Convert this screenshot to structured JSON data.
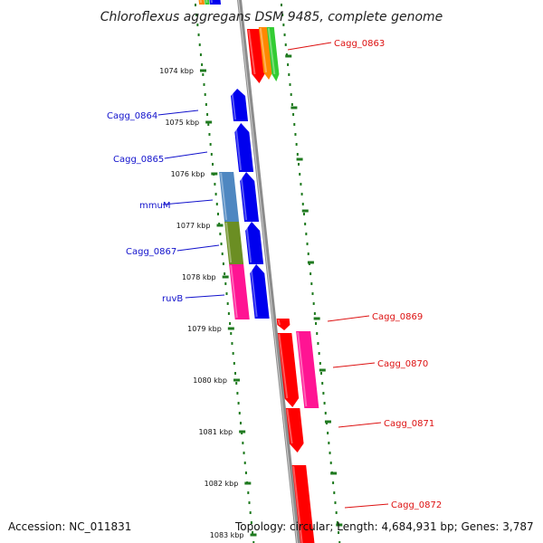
{
  "title": "Chloroflexus aggregans DSM 9485, complete genome",
  "accession": "Accession: NC_011831",
  "topology": "Topology: circular; Length: 4,684,931 bp; Genes: 3,787",
  "colors": {
    "backbone": "#8c8c8c",
    "ruler": "#1f7a1f",
    "forward_label": "#dd1111",
    "reverse_label": "#1111cc"
  },
  "ruler_ticks": [
    "1074 kbp",
    "1075 kbp",
    "1076 kbp",
    "1077 kbp",
    "1078 kbp",
    "1079 kbp",
    "1080 kbp",
    "1081 kbp",
    "1082 kbp",
    "1083 kbp"
  ],
  "gene_labels": {
    "reverse_strand": [
      "Cagg_0864",
      "Cagg_0865",
      "mmuM",
      "Cagg_0867",
      "ruvB"
    ],
    "forward_strand": [
      "Cagg_0863",
      "Cagg_0869",
      "Cagg_0870",
      "Cagg_0871",
      "Cagg_0872"
    ]
  }
}
